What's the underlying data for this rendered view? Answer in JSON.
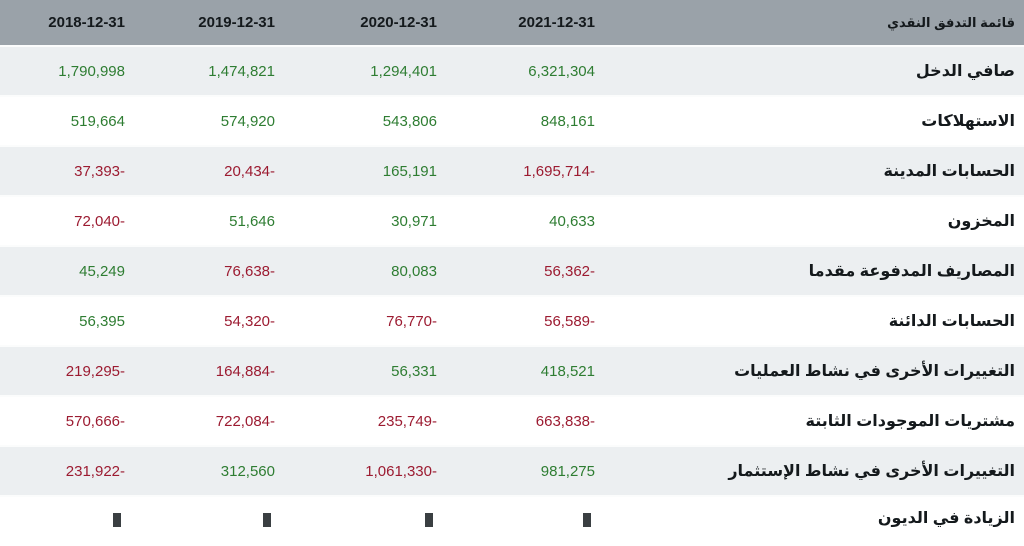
{
  "header": {
    "title": "قائمة التدفق النقدي",
    "columns": [
      "2018-12-31",
      "2019-12-31",
      "2020-12-31",
      "2021-12-31"
    ]
  },
  "colors": {
    "positive": "#2e7d32",
    "negative": "#9c1b31",
    "header_bg": "#9aa2a9",
    "row_alt_bg": "#eceff1"
  },
  "rows": [
    {
      "label": "صافي الدخل",
      "values": [
        "1,790,998",
        "1,474,821",
        "1,294,401",
        "6,321,304"
      ],
      "signs": [
        "pos",
        "pos",
        "pos",
        "pos"
      ]
    },
    {
      "label": "الاستهلاكات",
      "values": [
        "519,664",
        "574,920",
        "543,806",
        "848,161"
      ],
      "signs": [
        "pos",
        "pos",
        "pos",
        "pos"
      ]
    },
    {
      "label": "الحسابات المدينة",
      "values": [
        "37,393-",
        "20,434-",
        "165,191",
        "1,695,714-"
      ],
      "signs": [
        "neg",
        "neg",
        "pos",
        "neg"
      ]
    },
    {
      "label": "المخزون",
      "values": [
        "72,040-",
        "51,646",
        "30,971",
        "40,633"
      ],
      "signs": [
        "neg",
        "pos",
        "pos",
        "pos"
      ]
    },
    {
      "label": "المصاريف المدفوعة مقدما",
      "values": [
        "45,249",
        "76,638-",
        "80,083",
        "56,362-"
      ],
      "signs": [
        "pos",
        "neg",
        "pos",
        "neg"
      ]
    },
    {
      "label": "الحسابات الدائنة",
      "values": [
        "56,395",
        "54,320-",
        "76,770-",
        "56,589-"
      ],
      "signs": [
        "pos",
        "neg",
        "neg",
        "neg"
      ]
    },
    {
      "label": "التغييرات الأخرى في نشاط العمليات",
      "values": [
        "219,295-",
        "164,884-",
        "56,331",
        "418,521"
      ],
      "signs": [
        "neg",
        "neg",
        "pos",
        "pos"
      ]
    },
    {
      "label": "مشتريات الموجودات الثابتة",
      "values": [
        "570,666-",
        "722,084-",
        "235,749-",
        "663,838-"
      ],
      "signs": [
        "neg",
        "neg",
        "neg",
        "neg"
      ]
    },
    {
      "label": "التغييرات الأخرى في نشاط الإستثمار",
      "values": [
        "231,922-",
        "312,560",
        "1,061,330-",
        "981,275"
      ],
      "signs": [
        "neg",
        "pos",
        "neg",
        "pos"
      ]
    }
  ],
  "partial_row": {
    "label": "الزيادة في الديون"
  }
}
